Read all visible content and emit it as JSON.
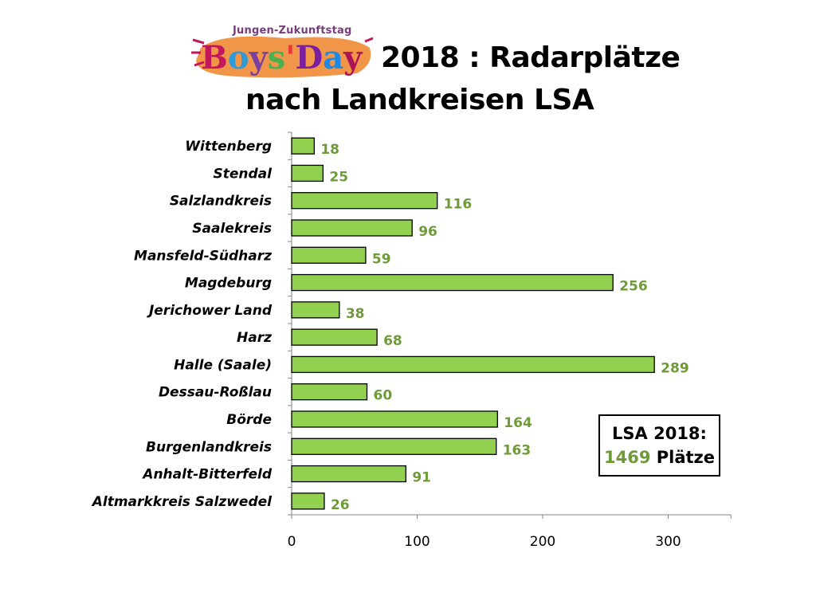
{
  "header": {
    "logo_tagline": "Jungen-Zukunftstag",
    "logo_text": "Boys'Day",
    "title_line1": "2018 : Radarplätze",
    "title_line2": "nach Landkreisen LSA"
  },
  "summary": {
    "heading": "LSA 2018:",
    "total_value": "1469",
    "total_unit": "Plätze"
  },
  "colors": {
    "bar_fill": "#92d050",
    "value_label": "#6f9a3a"
  },
  "chart_data": {
    "type": "bar",
    "orientation": "horizontal",
    "title": "2018 : Radarplätze nach Landkreisen LSA",
    "categories": [
      "Wittenberg",
      "Stendal",
      "Salzlandkreis",
      "Saalekreis",
      "Mansfeld-Südharz",
      "Magdeburg",
      "Jerichower Land",
      "Harz",
      "Halle (Saale)",
      "Dessau-Roßlau",
      "Börde",
      "Burgenlandkreis",
      "Anhalt-Bitterfeld",
      "Altmarkkreis Salzwedel"
    ],
    "values": [
      18,
      25,
      116,
      96,
      59,
      256,
      38,
      68,
      289,
      60,
      164,
      163,
      91,
      26
    ],
    "xlim": [
      0,
      350
    ],
    "xticks": [
      0,
      100,
      200,
      300
    ],
    "xlabel": "",
    "ylabel": "",
    "grid": false,
    "legend": "none"
  }
}
